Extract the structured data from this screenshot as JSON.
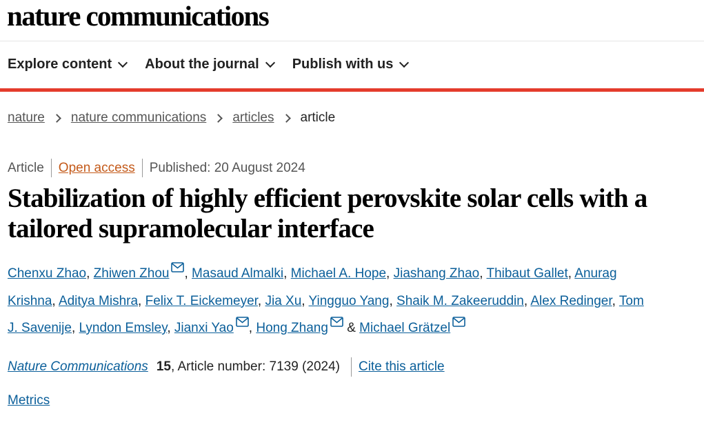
{
  "site": {
    "logo": "nature communications"
  },
  "nav": {
    "items": [
      {
        "label": "Explore content"
      },
      {
        "label": "About the journal"
      },
      {
        "label": "Publish with us"
      }
    ]
  },
  "breadcrumb": [
    "nature",
    "nature communications",
    "articles",
    "article"
  ],
  "meta": {
    "type": "Article",
    "access": "Open access",
    "published": "Published: 20 August 2024"
  },
  "article": {
    "title": "Stabilization of highly efficient perovskite solar cells with a tailored supramolecular interface",
    "authors": [
      {
        "name": "Chenxu Zhao",
        "mail": false
      },
      {
        "name": "Zhiwen Zhou",
        "mail": true
      },
      {
        "name": "Masaud Almalki",
        "mail": false
      },
      {
        "name": "Michael A. Hope",
        "mail": false
      },
      {
        "name": "Jiashang Zhao",
        "mail": false
      },
      {
        "name": "Thibaut Gallet",
        "mail": false
      },
      {
        "name": "Anurag Krishna",
        "mail": false
      },
      {
        "name": "Aditya Mishra",
        "mail": false
      },
      {
        "name": "Felix T. Eickemeyer",
        "mail": false
      },
      {
        "name": "Jia Xu",
        "mail": false
      },
      {
        "name": "Yingguo Yang",
        "mail": false
      },
      {
        "name": "Shaik M. Zakeeruddin",
        "mail": false
      },
      {
        "name": "Alex Redinger",
        "mail": false
      },
      {
        "name": "Tom J. Savenije",
        "mail": false
      },
      {
        "name": "Lyndon Emsley",
        "mail": false
      },
      {
        "name": "Jianxi Yao",
        "mail": true
      },
      {
        "name": "Hong Zhang",
        "mail": true
      },
      {
        "name": "Michael Grätzel",
        "mail": true
      }
    ],
    "journal": "Nature Communications",
    "volume": "15",
    "article_number": ", Article number: 7139 (2024)",
    "cite_label": "Cite this article",
    "metrics_label": "Metrics"
  },
  "colors": {
    "accent_red": "#e43c2c",
    "link_blue": "#0b5f9a",
    "open_access": "#c45a1a"
  }
}
